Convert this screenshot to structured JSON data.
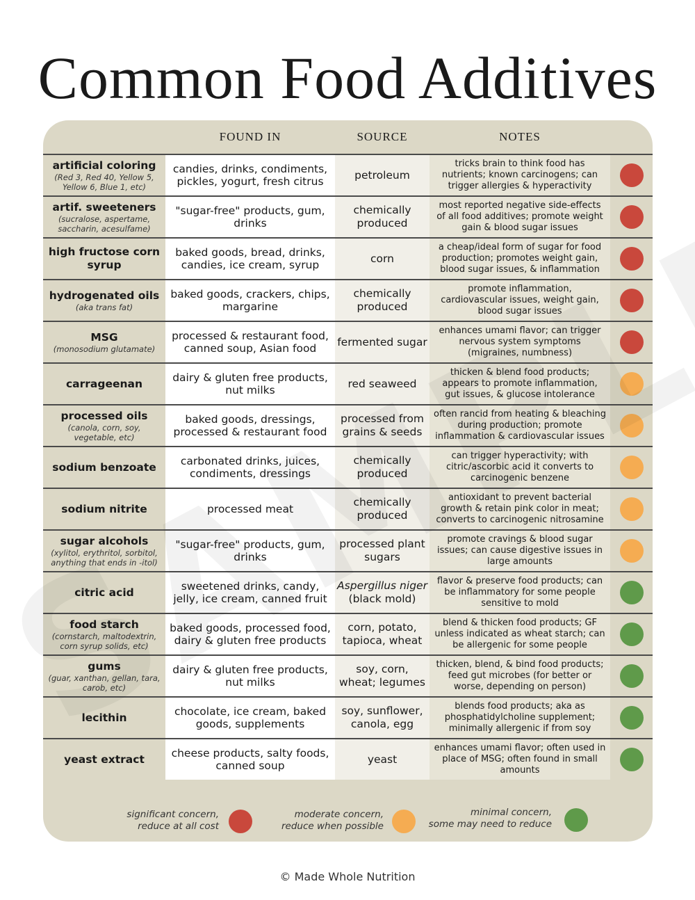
{
  "title": "Common Food Additives",
  "watermark": "SAMPLE",
  "columns": {
    "found_in": "FOUND IN",
    "source": "SOURCE",
    "notes": "NOTES"
  },
  "colors": {
    "significant": "#c9483c",
    "moderate": "#f5ac52",
    "minimal": "#5f9a4a"
  },
  "rows": [
    {
      "name": "artificial coloring",
      "sub": "(Red 3, Red 40, Yellow 5, Yellow 6, Blue 1, etc)",
      "found": "candies, drinks, condiments, pickles, yogurt, fresh citrus",
      "source": "petroleum",
      "notes": "tricks brain to think food has nutrients; known carcinogens; can trigger allergies & hyperactivity",
      "level": "significant"
    },
    {
      "name": "artif. sweeteners",
      "sub": "(sucralose, aspertame, saccharin, acesulfame)",
      "found": "\"sugar-free\" products, gum, drinks",
      "source": "chemically produced",
      "notes": "most reported negative side-effects of all food additives; promote weight gain & blood sugar issues",
      "level": "significant"
    },
    {
      "name": "high fructose corn syrup",
      "sub": "",
      "found": "baked goods, bread, drinks, candies, ice cream, syrup",
      "source": "corn",
      "notes": "a cheap/ideal form of sugar for food production; promotes weight gain, blood sugar issues, & inflammation",
      "level": "significant"
    },
    {
      "name": "hydrogenated oils",
      "sub": "(aka trans fat)",
      "found": "baked goods, crackers, chips, margarine",
      "source": "chemically produced",
      "notes": "promote inflammation, cardiovascular issues, weight gain, blood sugar issues",
      "level": "significant"
    },
    {
      "name": "MSG",
      "sub": "(monosodium glutamate)",
      "found": "processed & restaurant food, canned soup, Asian food",
      "source": "fermented sugar",
      "notes": "enhances umami flavor; can trigger nervous system symptoms (migraines, numbness)",
      "level": "significant"
    },
    {
      "name": "carrageenan",
      "sub": "",
      "found": "dairy & gluten free products, nut milks",
      "source": "red seaweed",
      "notes": "thicken & blend food products; appears to promote inflammation, gut issues, & glucose intolerance",
      "level": "moderate"
    },
    {
      "name": "processed oils",
      "sub": "(canola, corn, soy, vegetable, etc)",
      "found": "baked goods, dressings, processed & restaurant food",
      "source": "processed from grains & seeds",
      "notes": "often rancid from heating & bleaching during production; promote inflammation & cardiovascular issues",
      "level": "moderate"
    },
    {
      "name": "sodium benzoate",
      "sub": "",
      "found": "carbonated drinks, juices, condiments, dressings",
      "source": "chemically produced",
      "notes": "can trigger hyperactivity; with citric/ascorbic acid it converts to carcinogenic benzene",
      "level": "moderate"
    },
    {
      "name": "sodium nitrite",
      "sub": "",
      "found": "processed meat",
      "source": "chemically produced",
      "notes": "antioxidant to prevent bacterial growth & retain pink color in meat; converts to carcinogenic nitrosamine",
      "level": "moderate"
    },
    {
      "name": "sugar alcohols",
      "sub": "(xylitol, erythritol, sorbitol, anything that ends in -itol)",
      "found": "\"sugar-free\" products, gum, drinks",
      "source": "processed plant sugars",
      "notes": "promote cravings & blood sugar issues; can cause digestive issues in large amounts",
      "level": "moderate"
    },
    {
      "name": "citric acid",
      "sub": "",
      "found": "sweetened drinks, candy, jelly, ice cream, canned fruit",
      "source_italic": "Aspergillus niger",
      "source": "(black mold)",
      "notes": "flavor & preserve food products; can be inflammatory for some people sensitive to mold",
      "level": "minimal"
    },
    {
      "name": "food starch",
      "sub": "(cornstarch, maltodextrin, corn syrup solids, etc)",
      "found": "baked goods, processed food, dairy & gluten free products",
      "source": "corn, potato, tapioca, wheat",
      "notes": "blend & thicken food products; GF unless indicated as wheat starch; can be allergenic for some people",
      "level": "minimal"
    },
    {
      "name": "gums",
      "sub": "(guar, xanthan, gellan, tara, carob, etc)",
      "found": "dairy & gluten free products, nut milks",
      "source": "soy, corn, wheat; legumes",
      "notes": "thicken, blend, & bind food products; feed gut microbes (for better or worse, depending on person)",
      "level": "minimal"
    },
    {
      "name": "lecithin",
      "sub": "",
      "found": "chocolate, ice cream, baked goods, supplements",
      "source": "soy, sunflower, canola, egg",
      "notes": "blends food products; aka as phosphatidylcholine supplement; minimally allergenic if from soy",
      "level": "minimal"
    },
    {
      "name": "yeast extract",
      "sub": "",
      "found": "cheese products, salty foods, canned soup",
      "source": "yeast",
      "notes": "enhances umami flavor; often used in place of MSG; often found in small amounts",
      "level": "minimal"
    }
  ],
  "legend": {
    "significant_line1": "significant concern,",
    "significant_line2": "reduce at all cost",
    "moderate_line1": "moderate concern,",
    "moderate_line2": "reduce when possible",
    "minimal_line1": "minimal concern,",
    "minimal_line2": "some may need to reduce"
  },
  "footer": "© Made Whole Nutrition"
}
